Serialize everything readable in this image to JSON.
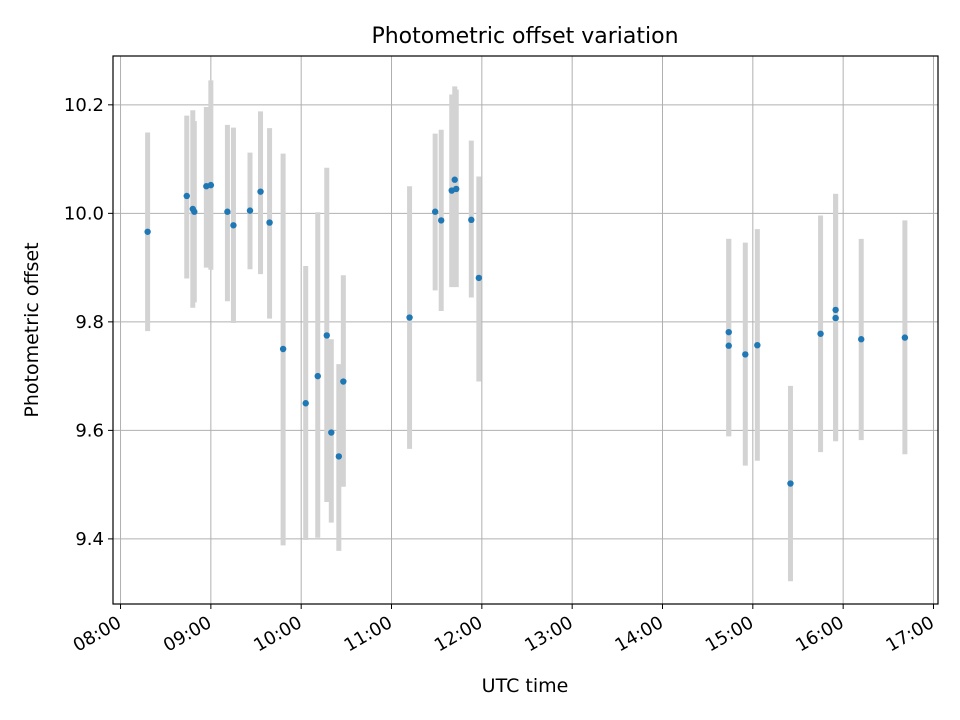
{
  "chart_data": {
    "type": "scatter",
    "title": "Photometric offset variation",
    "xlabel": "UTC time",
    "ylabel": "Photometric offset",
    "x_unit": "UTC time of day",
    "xlim": [
      "07:55",
      "17:03"
    ],
    "ylim": [
      9.28,
      10.29
    ],
    "x_ticks": [
      "08:00",
      "09:00",
      "10:00",
      "11:00",
      "12:00",
      "13:00",
      "14:00",
      "15:00",
      "16:00",
      "17:00"
    ],
    "y_ticks": [
      9.4,
      9.6,
      9.8,
      10.0,
      10.2
    ],
    "y_tick_labels": [
      "9.4",
      "9.6",
      "9.8",
      "10.0",
      "10.2"
    ],
    "grid": true,
    "colors": {
      "point": "#1f77b4",
      "errorbar": "#d3d3d3",
      "grid": "#b0b0b0"
    },
    "series": [
      {
        "x": [
          "08:18",
          "08:44",
          "08:48",
          "08:49",
          "08:57",
          "09:00",
          "09:11",
          "09:15",
          "09:26",
          "09:33",
          "09:39",
          "09:48",
          "10:03",
          "10:11",
          "10:17",
          "10:20",
          "10:25",
          "10:28",
          "11:12",
          "11:29",
          "11:33",
          "11:40",
          "11:42",
          "11:43",
          "11:53",
          "11:58",
          "14:44",
          "14:44",
          "14:55",
          "15:03",
          "15:25",
          "15:45",
          "15:55",
          "15:55",
          "16:12",
          "16:41"
        ],
        "y": [
          9.966,
          10.032,
          10.008,
          10.003,
          10.05,
          10.052,
          10.003,
          9.978,
          10.005,
          10.04,
          9.983,
          9.75,
          9.65,
          9.7,
          9.775,
          9.596,
          9.552,
          9.69,
          9.808,
          10.003,
          9.987,
          10.042,
          10.062,
          10.045,
          9.988,
          9.881,
          9.781,
          9.756,
          9.74,
          9.757,
          9.502,
          9.778,
          9.822,
          9.807,
          9.768,
          9.771
        ],
        "yerr_low": [
          9.783,
          9.88,
          9.826,
          9.836,
          9.9,
          9.896,
          9.838,
          9.798,
          9.897,
          9.888,
          9.806,
          9.388,
          9.398,
          9.402,
          9.468,
          9.43,
          9.378,
          9.496,
          9.566,
          9.858,
          9.82,
          9.864,
          9.888,
          9.864,
          9.845,
          9.69,
          9.589,
          9.59,
          9.535,
          9.544,
          9.322,
          9.56,
          9.58,
          9.582,
          9.582,
          9.556
        ],
        "yerr_high": [
          10.149,
          10.18,
          10.19,
          10.17,
          10.196,
          10.245,
          10.163,
          10.158,
          10.112,
          10.188,
          10.157,
          10.11,
          9.903,
          10.002,
          10.084,
          9.768,
          9.722,
          9.886,
          10.05,
          10.147,
          10.154,
          10.219,
          10.234,
          10.228,
          10.134,
          10.068,
          9.953,
          9.953,
          9.946,
          9.971,
          9.682,
          9.996,
          10.036,
          10.036,
          9.953,
          9.987
        ]
      }
    ]
  }
}
